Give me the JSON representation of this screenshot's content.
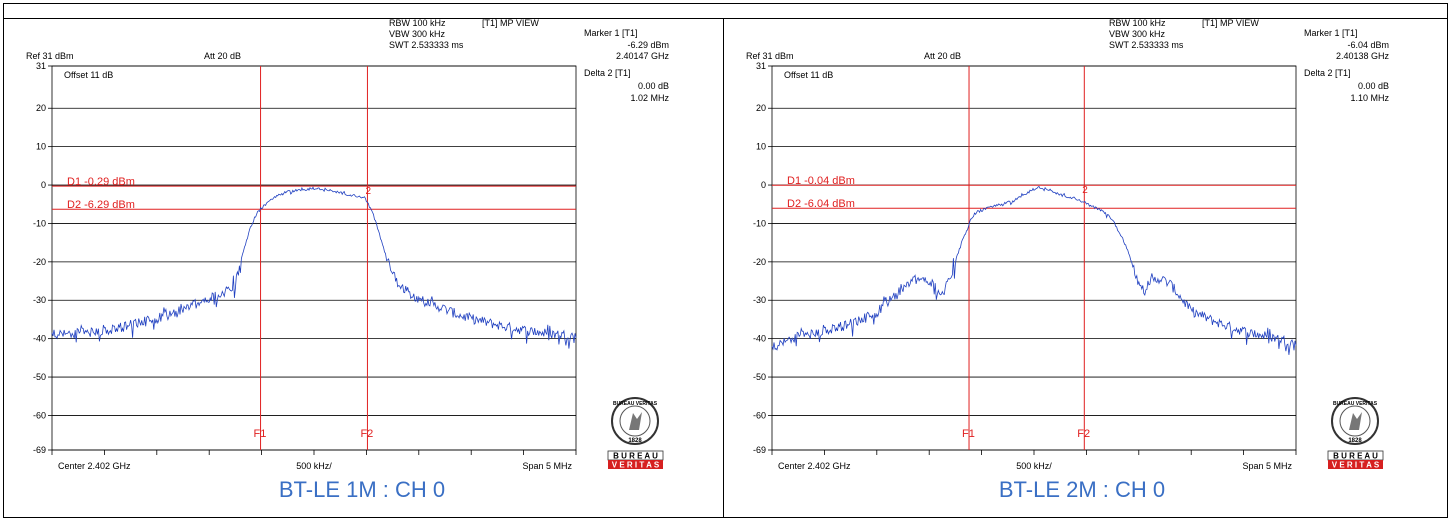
{
  "chart_data": [
    {
      "type": "line",
      "caption": "BT-LE 1M : CH 0",
      "header": {
        "rbw": "RBW 100 kHz",
        "vbw": "VBW 300 kHz",
        "swt": "SWT 2.533333 ms",
        "mode": "[T1] MP VIEW",
        "ref": "Ref 31 dBm",
        "att": "Att 20 dB",
        "offset": "Offset 11 dB"
      },
      "marker": {
        "title": "Marker 1 [T1]",
        "level": "-6.29 dBm",
        "freq": "2.40147 GHz",
        "delta_title": "Delta 2 [T1]",
        "delta_level": "0.00 dB",
        "delta_freq": "1.02 MHz"
      },
      "display_lines": {
        "d1_label": "D1 -0.29 dBm",
        "d1": -0.29,
        "d2_label": "D2 -6.29 dBm",
        "d2": -6.29
      },
      "marker_freq_offsets_mhz": {
        "f1": -0.51,
        "f2": 0.51,
        "f1_label": "F1",
        "f2_label": "F2",
        "m2_label": "2"
      },
      "x_footer": {
        "left": "Center 2.402 GHz",
        "mid": "500 kHz/",
        "right": "Span 5 MHz"
      },
      "yticks": [
        "31",
        "20",
        "10",
        "0",
        "-10",
        "-20",
        "-30",
        "-40",
        "-50",
        "-60",
        "-69"
      ],
      "ylim": [
        -69,
        31
      ],
      "xlim_mhz": [
        -2.5,
        2.5
      ],
      "trace_color": "#2040c0",
      "trace_mhz": [
        [
          -2.5,
          -38.5
        ],
        [
          -2.2,
          -38.3
        ],
        [
          -2.0,
          -37.8
        ],
        [
          -1.8,
          -36.5
        ],
        [
          -1.6,
          -35.2
        ],
        [
          -1.4,
          -33.8
        ],
        [
          -1.2,
          -31.5
        ],
        [
          -1.0,
          -29.5
        ],
        [
          -0.85,
          -27.5
        ],
        [
          -0.75,
          -25.5
        ],
        [
          -0.7,
          -20.0
        ],
        [
          -0.65,
          -15.0
        ],
        [
          -0.6,
          -10.5
        ],
        [
          -0.55,
          -7.5
        ],
        [
          -0.5,
          -5.8
        ],
        [
          -0.45,
          -4.8
        ],
        [
          -0.4,
          -3.5
        ],
        [
          -0.3,
          -2.0
        ],
        [
          -0.2,
          -1.5
        ],
        [
          -0.1,
          -1.2
        ],
        [
          0.0,
          -0.8
        ],
        [
          0.1,
          -1.0
        ],
        [
          0.2,
          -1.6
        ],
        [
          0.3,
          -2.3
        ],
        [
          0.4,
          -2.8
        ],
        [
          0.48,
          -3.2
        ],
        [
          0.55,
          -6.5
        ],
        [
          0.6,
          -10.5
        ],
        [
          0.65,
          -15.0
        ],
        [
          0.7,
          -19.5
        ],
        [
          0.75,
          -22.5
        ],
        [
          0.8,
          -25.0
        ],
        [
          0.9,
          -27.5
        ],
        [
          1.0,
          -29.5
        ],
        [
          1.2,
          -31.5
        ],
        [
          1.4,
          -33.8
        ],
        [
          1.6,
          -35.2
        ],
        [
          1.8,
          -36.5
        ],
        [
          2.0,
          -37.5
        ],
        [
          2.2,
          -38.3
        ],
        [
          2.5,
          -39.0
        ]
      ]
    },
    {
      "type": "line",
      "caption": "BT-LE 2M : CH 0",
      "header": {
        "rbw": "RBW 100 kHz",
        "vbw": "VBW 300 kHz",
        "swt": "SWT 2.533333 ms",
        "mode": "[T1] MP VIEW",
        "ref": "Ref 31 dBm",
        "att": "Att 20 dB",
        "offset": "Offset 11 dB"
      },
      "marker": {
        "title": "Marker 1 [T1]",
        "level": "-6.04 dBm",
        "freq": "2.40138 GHz",
        "delta_title": "Delta 2 [T1]",
        "delta_level": "0.00 dB",
        "delta_freq": "1.10 MHz"
      },
      "display_lines": {
        "d1_label": "D1 -0.04 dBm",
        "d1": -0.04,
        "d2_label": "D2 -6.04 dBm",
        "d2": -6.04
      },
      "marker_freq_offsets_mhz": {
        "f1": -0.62,
        "f2": 0.48,
        "f1_label": "F1",
        "f2_label": "F2",
        "m2_label": "2"
      },
      "x_footer": {
        "left": "Center 2.402 GHz",
        "mid": "500 kHz/",
        "right": "Span 5 MHz"
      },
      "yticks": [
        "31",
        "20",
        "10",
        "0",
        "-10",
        "-20",
        "-30",
        "-40",
        "-50",
        "-60",
        "-69"
      ],
      "ylim": [
        -69,
        31
      ],
      "xlim_mhz": [
        -2.5,
        2.5
      ],
      "trace_color": "#2040c0",
      "trace_mhz": [
        [
          -2.5,
          -42.0
        ],
        [
          -2.3,
          -39.5
        ],
        [
          -2.1,
          -38.5
        ],
        [
          -1.9,
          -37.0
        ],
        [
          -1.7,
          -35.5
        ],
        [
          -1.5,
          -33.0
        ],
        [
          -1.35,
          -29.0
        ],
        [
          -1.2,
          -25.5
        ],
        [
          -1.1,
          -24.0
        ],
        [
          -1.0,
          -25.0
        ],
        [
          -0.92,
          -27.0
        ],
        [
          -0.87,
          -28.0
        ],
        [
          -0.8,
          -23.5
        ],
        [
          -0.75,
          -20.0
        ],
        [
          -0.7,
          -15.5
        ],
        [
          -0.62,
          -10.5
        ],
        [
          -0.6,
          -8.5
        ],
        [
          -0.55,
          -7.0
        ],
        [
          -0.4,
          -5.5
        ],
        [
          -0.2,
          -4.2
        ],
        [
          -0.1,
          -2.5
        ],
        [
          0.0,
          -1.0
        ],
        [
          0.05,
          -0.5
        ],
        [
          0.15,
          -1.2
        ],
        [
          0.25,
          -2.5
        ],
        [
          0.4,
          -3.5
        ],
        [
          0.48,
          -4.5
        ],
        [
          0.55,
          -5.5
        ],
        [
          0.65,
          -6.5
        ],
        [
          0.75,
          -9.0
        ],
        [
          0.85,
          -14.0
        ],
        [
          0.95,
          -21.0
        ],
        [
          1.0,
          -25.5
        ],
        [
          1.05,
          -27.5
        ],
        [
          1.1,
          -25.0
        ],
        [
          1.2,
          -24.0
        ],
        [
          1.3,
          -25.5
        ],
        [
          1.4,
          -29.0
        ],
        [
          1.5,
          -32.5
        ],
        [
          1.7,
          -35.0
        ],
        [
          1.9,
          -37.0
        ],
        [
          2.1,
          -38.5
        ],
        [
          2.3,
          -39.5
        ],
        [
          2.5,
          -41.0
        ]
      ]
    }
  ],
  "logo": {
    "top": "BUREAU VERITAS",
    "year": "1828",
    "bar1": "B U R E A U",
    "bar2": "V E R I T A S"
  }
}
